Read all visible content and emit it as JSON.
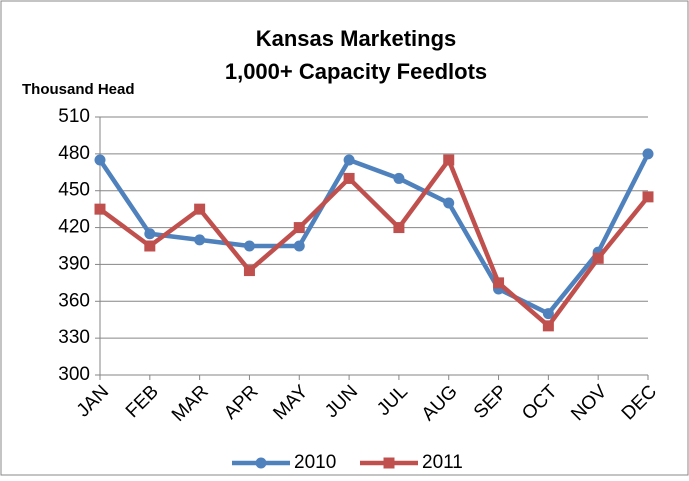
{
  "chart_data": {
    "type": "line",
    "title": [
      "Kansas Marketings",
      "1,000+ Capacity  Feedlots"
    ],
    "y_label": "Thousand Head",
    "categories": [
      "JAN",
      "FEB",
      "MAR",
      "APR",
      "MAY",
      "JUN",
      "JUL",
      "AUG",
      "SEP",
      "OCT",
      "NOV",
      "DEC"
    ],
    "series": [
      {
        "name": "2010",
        "color": "#4f81bd",
        "marker": "circle",
        "values": [
          475,
          415,
          410,
          405,
          405,
          475,
          460,
          440,
          370,
          350,
          400,
          480
        ]
      },
      {
        "name": "2011",
        "color": "#c0504d",
        "marker": "square",
        "values": [
          435,
          405,
          435,
          385,
          420,
          460,
          420,
          475,
          375,
          340,
          395,
          445
        ]
      }
    ],
    "ylim": [
      300,
      510
    ],
    "yticks": [
      300,
      330,
      360,
      390,
      420,
      450,
      480,
      510
    ],
    "grid": true,
    "legend": "bottom"
  }
}
